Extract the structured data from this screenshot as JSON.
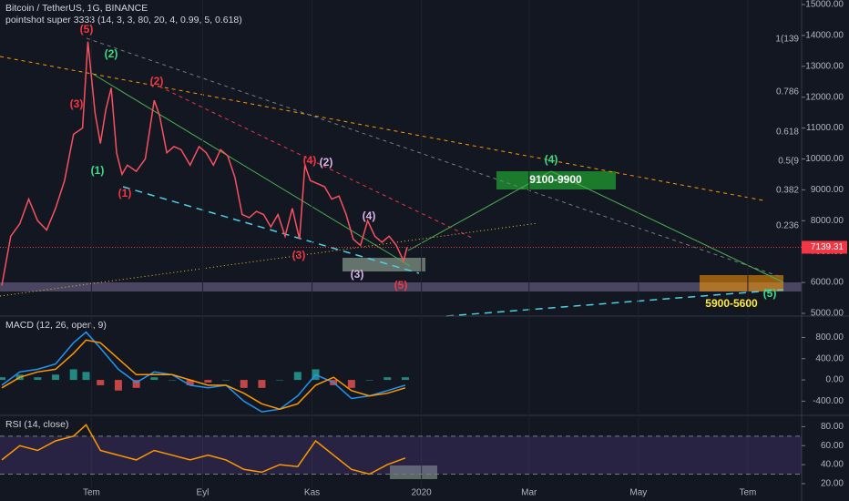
{
  "chart_data": [
    {
      "type": "line",
      "title": "Bitcoin / TetherUS, 1G, BINANCE",
      "subtitle": "pointshot super 3333 (14, 3, 3, 80, 20, 4, 0.99, 5, 0.618)",
      "x": [
        -50,
        -45,
        -40,
        -35,
        -30,
        -25,
        -20,
        -15,
        -10,
        -5,
        -2,
        2,
        5,
        8,
        11,
        14,
        17,
        20,
        25,
        30,
        35,
        38,
        42,
        46,
        50,
        55,
        60,
        64,
        68,
        72,
        76,
        80,
        84,
        88,
        92,
        96,
        100,
        104,
        108,
        112,
        116,
        119,
        122,
        126,
        130,
        134,
        138,
        142,
        146,
        150,
        154,
        158,
        162,
        166,
        170,
        174,
        176
      ],
      "series": [
        {
          "color": "#f7525f",
          "values": [
            5900,
            7500,
            7900,
            8700,
            8000,
            7700,
            8400,
            9300,
            10800,
            11000,
            13800,
            11500,
            10500,
            11600,
            12300,
            10200,
            9500,
            9800,
            9600,
            10000,
            11900,
            11400,
            10200,
            10400,
            10300,
            9800,
            10400,
            10200,
            9800,
            10300,
            10100,
            9400,
            8200,
            8100,
            8300,
            8200,
            7800,
            8200,
            7500,
            8400,
            7400,
            9800,
            9300,
            9200,
            9100,
            8700,
            8800,
            8200,
            7400,
            7200,
            8000,
            7500,
            7300,
            7500,
            7200,
            6700,
            7140
          ]
        }
      ],
      "xlim": [
        -51,
        396
      ],
      "xticks": [
        {
          "value": 0,
          "label": "Tem"
        },
        {
          "value": 62,
          "label": "Eyl"
        },
        {
          "value": 123,
          "label": "Kas"
        },
        {
          "value": 184,
          "label": "2020"
        },
        {
          "value": 244,
          "label": "Mar"
        },
        {
          "value": 305,
          "label": "May"
        },
        {
          "value": 366,
          "label": "Tem"
        }
      ],
      "ylim": [
        5000,
        15000
      ],
      "yticks": [
        {
          "value": 5000,
          "label": "5000.00"
        },
        {
          "value": 6000,
          "label": "6000.00"
        },
        {
          "value": 7000,
          "label": "7000.00"
        },
        {
          "value": 8000,
          "label": "8000.00"
        },
        {
          "value": 9000,
          "label": "9000.00"
        },
        {
          "value": 10000,
          "label": "10000.00"
        },
        {
          "value": 11000,
          "label": "11000.00"
        },
        {
          "value": 12000,
          "label": "12000.00"
        },
        {
          "value": 13000,
          "label": "13000.00"
        },
        {
          "value": 14000,
          "label": "14000.00"
        },
        {
          "value": 15000,
          "label": "15000.00"
        }
      ],
      "last_price": 7139.31,
      "last_price_color": "#f23645",
      "fib_labels": [
        "1(139",
        "0.786",
        "0.618",
        "0.5(9",
        "0.382",
        "0.236"
      ],
      "annotations": [
        {
          "text": "(5)",
          "color": "#f23645"
        },
        {
          "text": "(2)",
          "color": "#3ddc84"
        },
        {
          "text": "(2)",
          "color": "#f23645"
        },
        {
          "text": "(3)",
          "color": "#f23645"
        },
        {
          "text": "(1)",
          "color": "#3ddc84"
        },
        {
          "text": "(1)",
          "color": "#f23645"
        },
        {
          "text": "(4)",
          "color": "#f23645"
        },
        {
          "text": "(2)",
          "color": "#d8b4e2"
        },
        {
          "text": "(3)",
          "color": "#f23645"
        },
        {
          "text": "(4)",
          "color": "#d8b4e2"
        },
        {
          "text": "(3)",
          "color": "#d8b4e2"
        },
        {
          "text": "(5)",
          "color": "#f23645"
        },
        {
          "text": "(4)",
          "color": "#3ddc84"
        },
        {
          "text": "9100-9900",
          "color": "#ffffff"
        },
        {
          "text": "(5)",
          "color": "#3ddc84"
        },
        {
          "text": "5900-5600",
          "color": "#ffeb3b"
        }
      ]
    },
    {
      "type": "line",
      "title": "MACD (12, 26, open, 9)",
      "x": [
        -50,
        -40,
        -30,
        -20,
        -10,
        -3,
        5,
        15,
        25,
        35,
        45,
        55,
        65,
        75,
        85,
        95,
        105,
        115,
        125,
        135,
        145,
        155,
        165,
        175
      ],
      "series": [
        {
          "type": "bar",
          "color": "#26a69a",
          "negative_color": "#ef5350",
          "values": [
            50,
            100,
            50,
            100,
            200,
            150,
            -100,
            -200,
            -150,
            50,
            0,
            -100,
            -50,
            0,
            -150,
            -150,
            0,
            150,
            200,
            -100,
            -150,
            0,
            50,
            50
          ]
        },
        {
          "color": "#2196f3",
          "values": [
            -100,
            150,
            200,
            300,
            700,
            900,
            600,
            200,
            -50,
            150,
            100,
            -100,
            -150,
            -100,
            -400,
            -600,
            -550,
            -300,
            100,
            -50,
            -350,
            -300,
            -200,
            -100
          ]
        },
        {
          "color": "#ff9800",
          "values": [
            -150,
            50,
            150,
            200,
            500,
            750,
            700,
            400,
            100,
            100,
            100,
            0,
            -100,
            -100,
            -250,
            -450,
            -550,
            -450,
            -100,
            50,
            -200,
            -300,
            -250,
            -150
          ]
        }
      ],
      "ylim": [
        -650,
        1150
      ],
      "yticks": [
        {
          "value": 800,
          "label": "800.00"
        },
        {
          "value": 400,
          "label": "400.00"
        },
        {
          "value": 0,
          "label": "0.00"
        },
        {
          "value": -400,
          "label": "-400.00"
        }
      ]
    },
    {
      "type": "line",
      "title": "RSI (14, close)",
      "x": [
        -50,
        -40,
        -30,
        -20,
        -10,
        -3,
        5,
        15,
        25,
        35,
        45,
        55,
        65,
        75,
        85,
        95,
        105,
        115,
        125,
        135,
        145,
        155,
        165,
        175
      ],
      "series": [
        {
          "color": "#ff9800",
          "values": [
            45,
            60,
            55,
            65,
            70,
            82,
            55,
            50,
            45,
            55,
            50,
            45,
            50,
            45,
            35,
            32,
            40,
            38,
            65,
            50,
            35,
            30,
            40,
            47
          ]
        }
      ],
      "band": [
        30,
        70
      ],
      "band_color": "#7e57c2",
      "ylim": [
        18,
        90
      ],
      "yticks": [
        {
          "value": 80,
          "label": "80.00"
        },
        {
          "value": 60,
          "label": "60.00"
        },
        {
          "value": 40,
          "label": "40.00"
        },
        {
          "value": 20,
          "label": "20.00"
        }
      ]
    }
  ]
}
